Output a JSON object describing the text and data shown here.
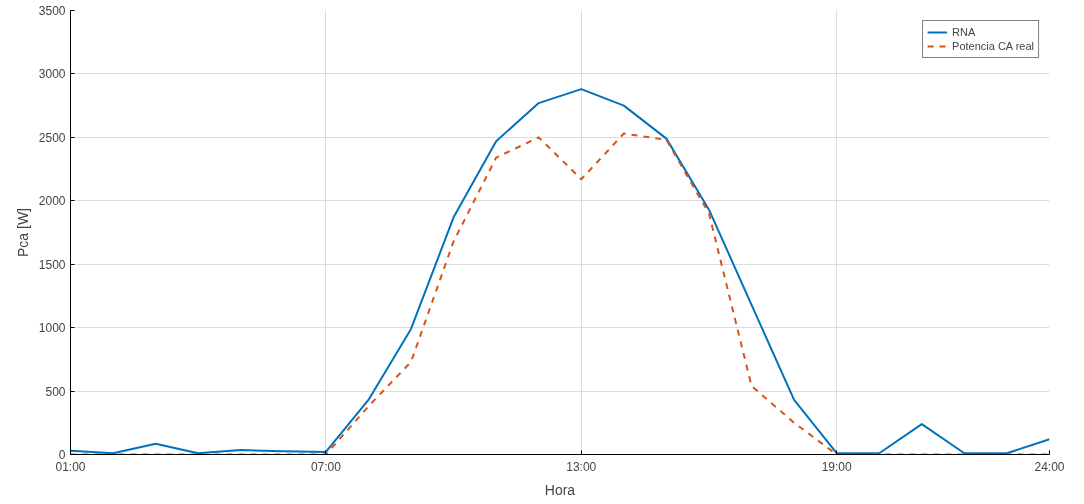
{
  "chart_data": {
    "type": "line",
    "xlabel": "Hora",
    "ylabel": "Pca [W]",
    "x": [
      1,
      2,
      3,
      4,
      5,
      6,
      7,
      8,
      9,
      10,
      11,
      12,
      13,
      14,
      15,
      16,
      17,
      18,
      19,
      20,
      21,
      22,
      23,
      24
    ],
    "series": [
      {
        "name": "RNA",
        "color": "#0072bd",
        "line_style": "solid",
        "values": [
          30,
          10,
          85,
          10,
          35,
          25,
          20,
          430,
          990,
          1870,
          2470,
          2770,
          2880,
          2750,
          2490,
          1930,
          1180,
          430,
          10,
          10,
          240,
          10,
          10,
          120
        ]
      },
      {
        "name": "Potencia CA real",
        "color": "#d95319",
        "line_style": "dashed",
        "values": [
          0,
          0,
          0,
          0,
          0,
          0,
          0,
          380,
          730,
          1680,
          2340,
          2500,
          2170,
          2530,
          2480,
          1900,
          540,
          250,
          0,
          0,
          0,
          0,
          0,
          0
        ]
      }
    ],
    "xlim": [
      1,
      24
    ],
    "ylim": [
      0,
      3500
    ],
    "xticks": [
      {
        "value": 1,
        "label": "01:00"
      },
      {
        "value": 7,
        "label": "07:00"
      },
      {
        "value": 13,
        "label": "13:00"
      },
      {
        "value": 19,
        "label": "19:00"
      },
      {
        "value": 24,
        "label": "24:00"
      }
    ],
    "yticks": [
      0,
      500,
      1000,
      1500,
      2000,
      2500,
      3000,
      3500
    ],
    "grid": true,
    "legend": "top right",
    "marker": "none"
  }
}
